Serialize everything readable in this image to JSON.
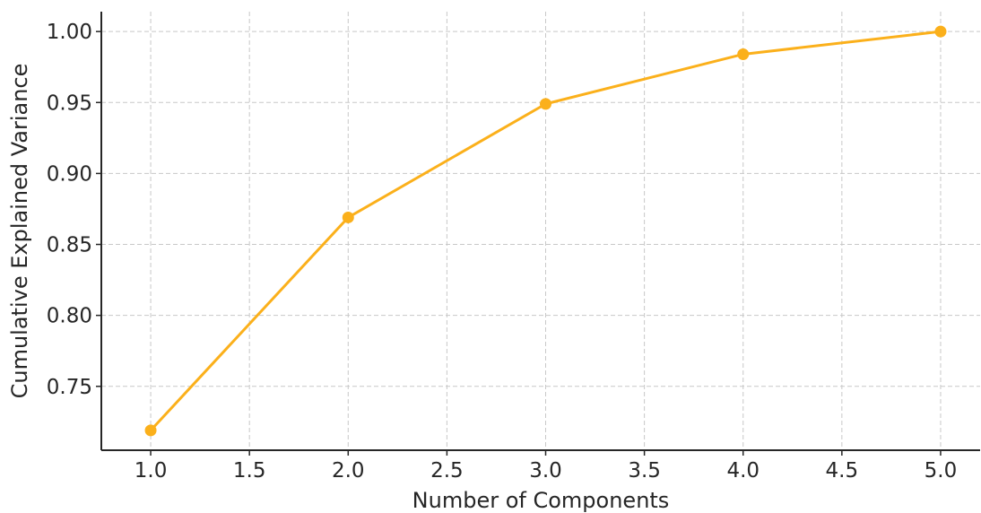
{
  "chart_data": {
    "type": "line",
    "title": "",
    "xlabel": "Number of Components",
    "ylabel": "Cumulative Explained Variance",
    "x": [
      1.0,
      2.0,
      3.0,
      4.0,
      5.0
    ],
    "series": [
      {
        "values": [
          0.719,
          0.869,
          0.949,
          0.984,
          1.0
        ]
      }
    ],
    "xlim": [
      0.75,
      5.2
    ],
    "ylim": [
      0.705,
      1.014
    ],
    "xticks": [
      1.0,
      1.5,
      2.0,
      2.5,
      3.0,
      3.5,
      4.0,
      4.5,
      5.0
    ],
    "xtick_labels": [
      "1.0",
      "1.5",
      "2.0",
      "2.5",
      "3.0",
      "3.5",
      "4.0",
      "4.5",
      "5.0"
    ],
    "yticks": [
      0.75,
      0.8,
      0.85,
      0.9,
      0.95,
      1.0
    ],
    "ytick_labels": [
      "0.75",
      "0.80",
      "0.85",
      "0.90",
      "0.95",
      "1.00"
    ],
    "grid": true,
    "legend": "none",
    "colors": {
      "line": "#fbb01b",
      "marker": "#fbb01b",
      "grid": "#c8c8c8",
      "axis": "#262626"
    },
    "marker": "circle"
  }
}
